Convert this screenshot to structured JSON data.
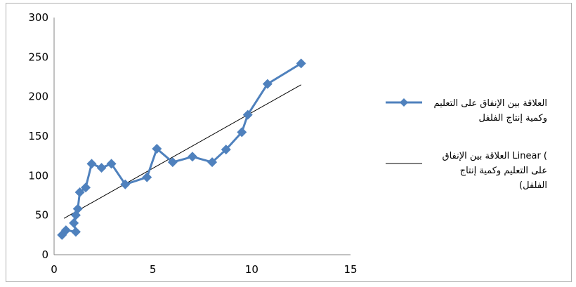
{
  "chart_data": {
    "type": "scatter",
    "title": "",
    "xlabel": "",
    "ylabel": "",
    "xlim": [
      0,
      15
    ],
    "ylim": [
      0,
      300
    ],
    "x_ticks": [
      "0",
      "5",
      "10",
      "15"
    ],
    "y_ticks": [
      "0",
      "50",
      "100",
      "150",
      "200",
      "250",
      "300"
    ],
    "grid": false,
    "legend_position": "right",
    "series": [
      {
        "name": "العلاقة بين الإنفاق على التعليم وكمية إنتاج الفلفل",
        "name_lines": [
          "العلاقة بين الإنفاق على التعليم",
          "وكمية إنتاج الفلفل"
        ],
        "color": "#4f81bd",
        "marker": "diamond",
        "line": "solid",
        "points": [
          [
            0.4,
            25
          ],
          [
            0.6,
            31
          ],
          [
            1.1,
            29
          ],
          [
            1.0,
            40
          ],
          [
            1.1,
            50
          ],
          [
            1.2,
            58
          ],
          [
            1.3,
            79
          ],
          [
            1.6,
            85
          ],
          [
            1.9,
            115
          ],
          [
            2.4,
            110
          ],
          [
            2.9,
            115
          ],
          [
            3.6,
            89
          ],
          [
            4.7,
            98
          ],
          [
            5.2,
            134
          ],
          [
            6.0,
            117
          ],
          [
            7.0,
            124
          ],
          [
            8.0,
            117
          ],
          [
            8.7,
            133
          ],
          [
            9.5,
            155
          ],
          [
            9.8,
            177
          ],
          [
            10.8,
            216
          ],
          [
            12.5,
            242
          ]
        ]
      },
      {
        "name": "Linear ( العلاقة بين الإنفاق على التعليم وكمية إنتاج الفلفل)",
        "name_lines": [
          "العلاقة بين الإنفاق Linear (",
          "على التعليم وكمية إنتاج",
          "(الفلفل"
        ],
        "color": "#000000",
        "marker": "none",
        "line": "trendline",
        "points": [
          [
            0.5,
            46
          ],
          [
            12.5,
            215
          ]
        ]
      }
    ]
  }
}
